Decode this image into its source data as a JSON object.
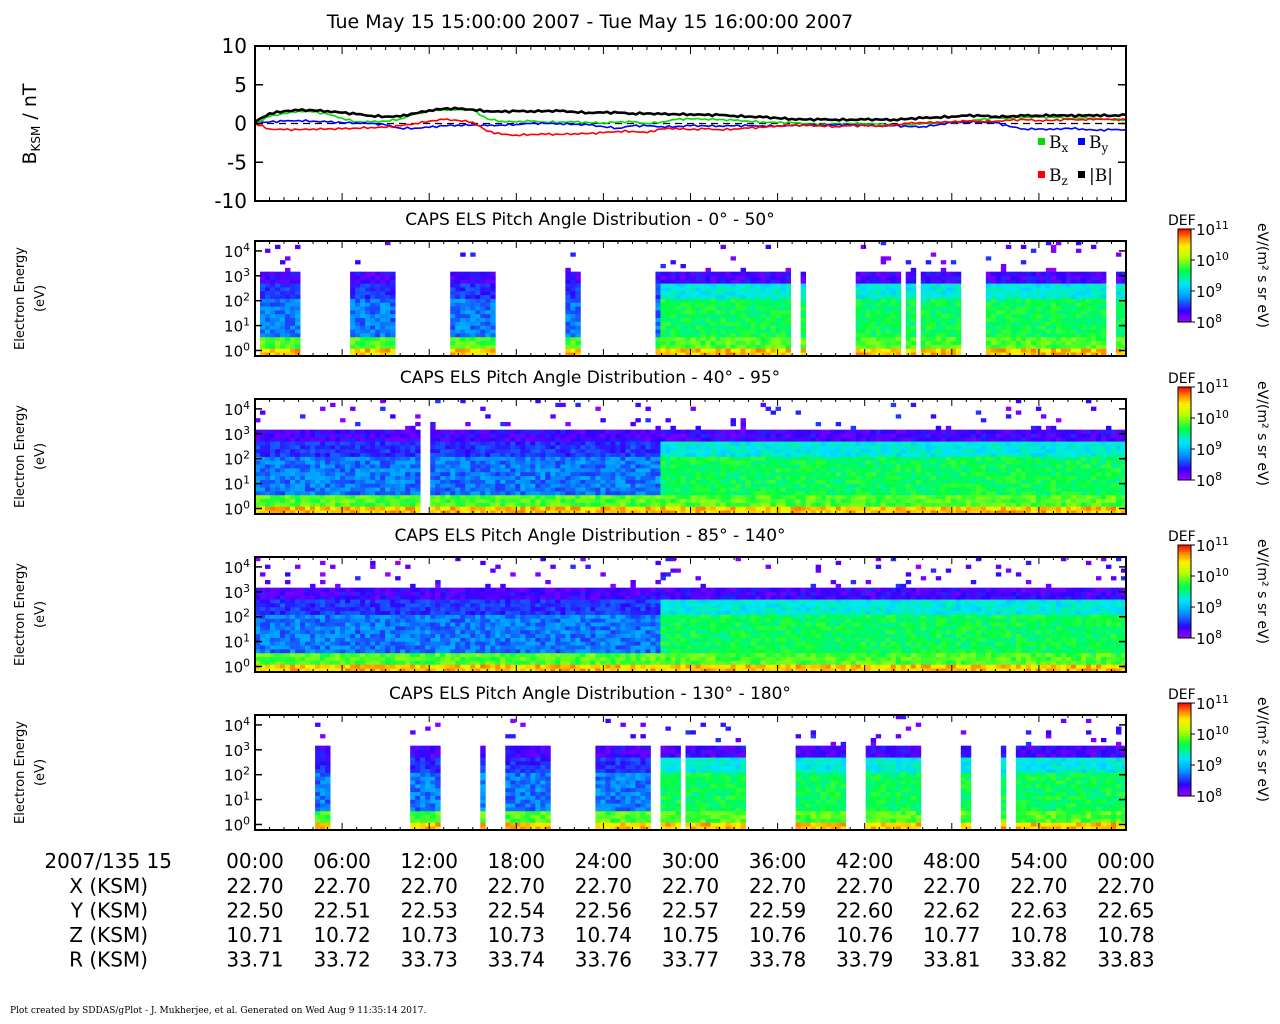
{
  "title": "Tue May 15 15:00:00 2007 - Tue May 15 16:00:00 2007",
  "footer": "Plot created by SDDAS/gPlot - J. Mukherjee, et al.  Generated on Wed Aug 9 11:35:14 2017.",
  "chart_data": [
    {
      "type": "line",
      "ylabel_main": "B",
      "ylabel_sub": "KSM",
      "ylabel_unit": " / nT",
      "ylim": [
        -10,
        10
      ],
      "yticks": [
        "10",
        "5",
        "0",
        "-5",
        "-10"
      ],
      "ytick_values": [
        10,
        5,
        0,
        -5,
        -10
      ],
      "xlim": [
        0,
        60
      ],
      "x": [
        0,
        1,
        2,
        3,
        4,
        5,
        6,
        7,
        8,
        9,
        10,
        11,
        12,
        13,
        14,
        15,
        16,
        17,
        18,
        19,
        20,
        21,
        22,
        23,
        24,
        25,
        26,
        27,
        28,
        29,
        30,
        31,
        32,
        33,
        34,
        35,
        36,
        37,
        38,
        39,
        40,
        41,
        42,
        43,
        44,
        45,
        46,
        47,
        48,
        49,
        50,
        51,
        52,
        53,
        54,
        55,
        56,
        57,
        58,
        59,
        60
      ],
      "series": [
        {
          "name": "Bx",
          "color": "#00dd00",
          "values": [
            0.0,
            0.9,
            1.3,
            1.6,
            1.5,
            1.2,
            0.7,
            0.2,
            0.2,
            0.3,
            0.6,
            1.2,
            1.6,
            1.8,
            1.8,
            1.7,
            0.6,
            0.3,
            0.2,
            0.3,
            0.2,
            0.2,
            0.2,
            0.1,
            0.1,
            0.2,
            0.2,
            0.0,
            0.2,
            0.5,
            0.6,
            0.6,
            0.5,
            0.4,
            0.3,
            0.2,
            0.1,
            0.1,
            0.0,
            -0.1,
            -0.1,
            0.0,
            0.0,
            -0.1,
            -0.2,
            -0.1,
            0.0,
            0.0,
            0.1,
            0.3,
            0.5,
            0.7,
            0.7,
            0.8,
            0.8,
            0.8,
            0.7,
            0.7,
            0.6,
            0.5,
            0.5
          ]
        },
        {
          "name": "By",
          "color": "#0000ff",
          "values": [
            0.0,
            0.2,
            0.3,
            0.4,
            0.3,
            0.2,
            0.1,
            0.1,
            0.0,
            -0.2,
            -0.6,
            -0.6,
            -0.5,
            -0.3,
            -0.2,
            -0.2,
            -0.3,
            -0.2,
            -0.1,
            0.0,
            0.0,
            0.0,
            -0.1,
            -0.2,
            -0.4,
            -0.6,
            -0.3,
            -0.3,
            -0.4,
            -0.4,
            -0.3,
            -0.3,
            -0.3,
            -0.3,
            -0.3,
            -0.3,
            -0.3,
            -0.3,
            -0.2,
            -0.2,
            -0.2,
            -0.2,
            -0.2,
            -0.3,
            -0.3,
            -0.4,
            -0.4,
            -0.2,
            0.1,
            0.2,
            0.2,
            0.1,
            -0.4,
            -0.7,
            -0.7,
            -0.8,
            -0.6,
            -0.7,
            -0.9,
            -0.8,
            -0.8
          ]
        },
        {
          "name": "Bz",
          "color": "#ff0000",
          "values": [
            0.0,
            -0.7,
            -0.8,
            -0.8,
            -0.7,
            -0.7,
            -0.7,
            -0.6,
            -0.5,
            -0.5,
            -0.3,
            0.0,
            0.3,
            0.5,
            0.4,
            0.2,
            -1.0,
            -1.4,
            -1.5,
            -1.4,
            -1.4,
            -1.4,
            -1.3,
            -1.3,
            -1.2,
            -1.0,
            -1.0,
            -1.2,
            -0.7,
            -0.6,
            -0.8,
            -0.7,
            -0.8,
            -0.7,
            -0.6,
            -0.5,
            -0.3,
            -0.2,
            -0.3,
            -0.3,
            -0.4,
            -0.3,
            -0.3,
            -0.3,
            -0.2,
            0.0,
            0.1,
            0.2,
            0.2,
            0.3,
            0.3,
            0.3,
            0.4,
            0.5,
            0.4,
            0.4,
            0.5,
            0.5,
            0.6,
            0.5,
            0.5
          ]
        },
        {
          "name": "|B|",
          "color": "#000000",
          "values": [
            0.2,
            1.3,
            1.6,
            1.7,
            1.7,
            1.6,
            1.4,
            1.2,
            1.0,
            0.9,
            0.9,
            1.3,
            1.7,
            1.9,
            1.9,
            1.8,
            1.6,
            1.5,
            1.6,
            1.6,
            1.6,
            1.6,
            1.5,
            1.4,
            1.4,
            1.4,
            1.3,
            1.3,
            1.2,
            1.2,
            1.2,
            1.1,
            1.1,
            1.0,
            0.9,
            0.8,
            0.7,
            0.6,
            0.5,
            0.5,
            0.5,
            0.5,
            0.5,
            0.5,
            0.5,
            0.6,
            0.7,
            0.8,
            0.9,
            1.0,
            1.0,
            0.9,
            0.9,
            1.0,
            1.0,
            1.1,
            1.0,
            1.0,
            1.1,
            1.0,
            1.1
          ]
        }
      ],
      "legend": [
        {
          "main": "B",
          "sub": "x",
          "color": "#00dd00"
        },
        {
          "main": "B",
          "sub": "y",
          "color": "#0000ff"
        },
        {
          "main": "B",
          "sub": "z",
          "color": "#ff0000"
        },
        {
          "main": "|B|",
          "sub": "",
          "color": "#000000"
        }
      ],
      "legend_placement": "bottom-right",
      "zero_line": "dashed"
    },
    {
      "type": "heatmap",
      "title": "CAPS ELS Pitch Angle Distribution - 0° - 50°",
      "ylabel": [
        "Electron Energy",
        "(eV)"
      ],
      "y_scale": "log",
      "ylim": [
        0.6,
        25000
      ],
      "yticks": [
        {
          "base": "10",
          "exp": "4",
          "value": 10000
        },
        {
          "base": "10",
          "exp": "3",
          "value": 1000
        },
        {
          "base": "10",
          "exp": "2",
          "value": 100
        },
        {
          "base": "10",
          "exp": "1",
          "value": 10
        },
        {
          "base": "10",
          "exp": "0",
          "value": 1
        }
      ],
      "xlim": [
        0,
        60
      ],
      "data_intervals": [
        [
          0.5,
          3.2
        ],
        [
          6.7,
          9.7
        ],
        [
          13.5,
          16.6
        ],
        [
          21.5,
          22.3
        ],
        [
          27.7,
          36.8
        ],
        [
          37.5,
          38.0
        ],
        [
          41.3,
          44.5
        ],
        [
          44.8,
          45.5
        ],
        [
          46.0,
          48.5
        ],
        [
          50.5,
          58.5
        ],
        [
          59.3,
          60
        ]
      ],
      "colorbar": {
        "label": "DEF",
        "unit": "eV/(m² s sr eV)",
        "ticks": [
          {
            "base": "10",
            "exp": "11"
          },
          {
            "base": "10",
            "exp": "10"
          },
          {
            "base": "10",
            "exp": "9"
          },
          {
            "base": "10",
            "exp": "8"
          }
        ]
      }
    },
    {
      "type": "heatmap",
      "title": "CAPS ELS Pitch Angle Distribution - 40° - 95°",
      "ylabel": [
        "Electron Energy",
        "(eV)"
      ],
      "y_scale": "log",
      "ylim": [
        0.6,
        25000
      ],
      "yticks": [
        {
          "base": "10",
          "exp": "4",
          "value": 10000
        },
        {
          "base": "10",
          "exp": "3",
          "value": 1000
        },
        {
          "base": "10",
          "exp": "2",
          "value": 100
        },
        {
          "base": "10",
          "exp": "1",
          "value": 10
        },
        {
          "base": "10",
          "exp": "0",
          "value": 1
        }
      ],
      "xlim": [
        0,
        60
      ],
      "data_intervals": [
        [
          0,
          11.3
        ],
        [
          12.2,
          60
        ]
      ],
      "colorbar": {
        "label": "DEF",
        "unit": "eV/(m² s sr eV)",
        "ticks": [
          {
            "base": "10",
            "exp": "11"
          },
          {
            "base": "10",
            "exp": "10"
          },
          {
            "base": "10",
            "exp": "9"
          },
          {
            "base": "10",
            "exp": "8"
          }
        ]
      }
    },
    {
      "type": "heatmap",
      "title": "CAPS ELS Pitch Angle Distribution - 85° - 140°",
      "ylabel": [
        "Electron Energy",
        "(eV)"
      ],
      "y_scale": "log",
      "ylim": [
        0.6,
        25000
      ],
      "yticks": [
        {
          "base": "10",
          "exp": "4",
          "value": 10000
        },
        {
          "base": "10",
          "exp": "3",
          "value": 1000
        },
        {
          "base": "10",
          "exp": "2",
          "value": 100
        },
        {
          "base": "10",
          "exp": "1",
          "value": 10
        },
        {
          "base": "10",
          "exp": "0",
          "value": 1
        }
      ],
      "xlim": [
        0,
        60
      ],
      "data_intervals": [
        [
          0,
          60
        ]
      ],
      "colorbar": {
        "label": "DEF",
        "unit": "eV/(m² s sr eV)",
        "ticks": [
          {
            "base": "10",
            "exp": "11"
          },
          {
            "base": "10",
            "exp": "10"
          },
          {
            "base": "10",
            "exp": "9"
          },
          {
            "base": "10",
            "exp": "8"
          }
        ]
      }
    },
    {
      "type": "heatmap",
      "title": "CAPS ELS Pitch Angle Distribution - 130° - 180°",
      "ylabel": [
        "Electron Energy",
        "(eV)"
      ],
      "y_scale": "log",
      "ylim": [
        0.6,
        25000
      ],
      "yticks": [
        {
          "base": "10",
          "exp": "4",
          "value": 10000
        },
        {
          "base": "10",
          "exp": "3",
          "value": 1000
        },
        {
          "base": "10",
          "exp": "2",
          "value": 100
        },
        {
          "base": "10",
          "exp": "1",
          "value": 10
        },
        {
          "base": "10",
          "exp": "0",
          "value": 1
        }
      ],
      "xlim": [
        0,
        60
      ],
      "data_intervals": [
        [
          4.3,
          5.3
        ],
        [
          10.6,
          12.9
        ],
        [
          15.6,
          15.8
        ],
        [
          17.1,
          20.3
        ],
        [
          23.4,
          27.3
        ],
        [
          28.0,
          29.3
        ],
        [
          29.6,
          33.7
        ],
        [
          37.1,
          40.6
        ],
        [
          42.1,
          45.8
        ],
        [
          48.7,
          49.4
        ],
        [
          51.3,
          51.7
        ],
        [
          52.3,
          60
        ]
      ],
      "colorbar": {
        "label": "DEF",
        "unit": "eV/(m² s sr eV)",
        "ticks": [
          {
            "base": "10",
            "exp": "11"
          },
          {
            "base": "10",
            "exp": "10"
          },
          {
            "base": "10",
            "exp": "9"
          },
          {
            "base": "10",
            "exp": "8"
          }
        ]
      }
    }
  ],
  "x_axis": {
    "row_label": "2007/135 15",
    "ticks": [
      "00:00",
      "06:00",
      "12:00",
      "18:00",
      "24:00",
      "30:00",
      "36:00",
      "42:00",
      "48:00",
      "54:00",
      "00:00"
    ],
    "tick_minutes": [
      0,
      6,
      12,
      18,
      24,
      30,
      36,
      42,
      48,
      54,
      60
    ]
  },
  "ephemeris": [
    {
      "label": "X (KSM)",
      "values": [
        "22.70",
        "22.70",
        "22.70",
        "22.70",
        "22.70",
        "22.70",
        "22.70",
        "22.70",
        "22.70",
        "22.70",
        "22.70"
      ]
    },
    {
      "label": "Y (KSM)",
      "values": [
        "22.50",
        "22.51",
        "22.53",
        "22.54",
        "22.56",
        "22.57",
        "22.59",
        "22.60",
        "22.62",
        "22.63",
        "22.65"
      ]
    },
    {
      "label": "Z (KSM)",
      "values": [
        "10.71",
        "10.72",
        "10.73",
        "10.73",
        "10.74",
        "10.75",
        "10.76",
        "10.76",
        "10.77",
        "10.78",
        "10.78"
      ]
    },
    {
      "label": "R (KSM)",
      "values": [
        "33.71",
        "33.72",
        "33.73",
        "33.74",
        "33.76",
        "33.77",
        "33.78",
        "33.79",
        "33.81",
        "33.82",
        "33.83"
      ]
    }
  ]
}
